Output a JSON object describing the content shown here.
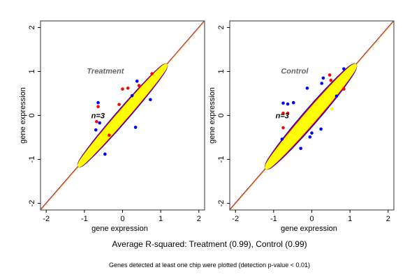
{
  "chart_data": [
    {
      "type": "scatter",
      "title": "Treatment",
      "annotation": "n=3",
      "xlabel": "gene expression",
      "ylabel": "gene expression",
      "xlim": [
        -2.15,
        2.15
      ],
      "ylim": [
        -2.15,
        2.15
      ],
      "xticks": [
        "-2",
        "-1",
        "0",
        "1",
        "2"
      ],
      "yticks": [
        "-2",
        "-1",
        "0",
        "1",
        "2"
      ],
      "grid": false,
      "reference_lines": [
        {
          "slope": 1,
          "intercept": 0,
          "colors": [
            "#0000ff",
            "#ff0000",
            "#ffa500"
          ]
        }
      ],
      "cloud": {
        "range": [
          -1.15,
          1.15
        ],
        "spread": 0.13,
        "colors": {
          "outer": "#0000ff",
          "middle": "#ff0000",
          "core": "#ffff00"
        }
      },
      "outliers": [
        {
          "x": -0.64,
          "y": 0.29,
          "c": "#0000ff"
        },
        {
          "x": -0.64,
          "y": 0.2,
          "c": "#ff0000"
        },
        {
          "x": 0.34,
          "y": -0.27,
          "c": "#0000ff"
        },
        {
          "x": -0.46,
          "y": -0.88,
          "c": "#0000ff"
        },
        {
          "x": 0.0,
          "y": 0.6,
          "c": "#ff0000"
        },
        {
          "x": 0.14,
          "y": 0.62,
          "c": "#ff0000"
        },
        {
          "x": 0.73,
          "y": 0.36,
          "c": "#0000ff"
        },
        {
          "x": 0.38,
          "y": 0.78,
          "c": "#0000ff"
        },
        {
          "x": -0.68,
          "y": -0.14,
          "c": "#ff0000"
        },
        {
          "x": -0.6,
          "y": -0.17,
          "c": "#0000ff"
        },
        {
          "x": -0.7,
          "y": -0.33,
          "c": "#0000ff"
        },
        {
          "x": 0.77,
          "y": 0.95,
          "c": "#ff0000"
        },
        {
          "x": 0.43,
          "y": 0.68,
          "c": "#ff0000"
        },
        {
          "x": -0.09,
          "y": 0.25,
          "c": "#ff0000"
        },
        {
          "x": 0.25,
          "y": 0.45,
          "c": "#0000ff"
        },
        {
          "x": -0.35,
          "y": -0.45,
          "c": "#ff0000"
        }
      ]
    },
    {
      "type": "scatter",
      "title": "Control",
      "annotation": "n=3",
      "xlabel": "gene expression",
      "ylabel": "gene expression",
      "xlim": [
        -2.15,
        2.15
      ],
      "ylim": [
        -2.15,
        2.15
      ],
      "xticks": [
        "-2",
        "-1",
        "0",
        "1",
        "2"
      ],
      "yticks": [
        "-2",
        "-1",
        "0",
        "1",
        "2"
      ],
      "grid": false,
      "reference_lines": [
        {
          "slope": 1,
          "intercept": 0,
          "colors": [
            "#0000ff",
            "#ff0000",
            "#ffa500"
          ]
        }
      ],
      "cloud": {
        "range": [
          -1.2,
          1.15
        ],
        "spread": 0.17,
        "colors": {
          "outer": "#0000ff",
          "middle": "#ff0000",
          "core": "#ffff00"
        }
      },
      "outliers": [
        {
          "x": -0.75,
          "y": 0.28,
          "c": "#0000ff"
        },
        {
          "x": -0.63,
          "y": 0.26,
          "c": "#0000ff"
        },
        {
          "x": -0.48,
          "y": 0.29,
          "c": "#0000ff"
        },
        {
          "x": -0.75,
          "y": 0.05,
          "c": "#ff0000"
        },
        {
          "x": -0.63,
          "y": 0.05,
          "c": "#ff0000"
        },
        {
          "x": -0.12,
          "y": 0.62,
          "c": "#0000ff"
        },
        {
          "x": 0.24,
          "y": -0.31,
          "c": "#0000ff"
        },
        {
          "x": 0.84,
          "y": 1.06,
          "c": "#0000ff"
        },
        {
          "x": 0.47,
          "y": 0.92,
          "c": "#ff0000"
        },
        {
          "x": -0.78,
          "y": -0.54,
          "c": "#0000ff"
        },
        {
          "x": -0.29,
          "y": -0.75,
          "c": "#0000ff"
        },
        {
          "x": -0.05,
          "y": -0.49,
          "c": "#0000ff"
        },
        {
          "x": 0.65,
          "y": 0.44,
          "c": "#0000ff"
        },
        {
          "x": 0.84,
          "y": 0.6,
          "c": "#ff0000"
        },
        {
          "x": -0.75,
          "y": -0.28,
          "c": "#ff0000"
        },
        {
          "x": 0.53,
          "y": 0.15,
          "c": "#ffff00"
        },
        {
          "x": 0.26,
          "y": 0.73,
          "c": "#0000ff"
        },
        {
          "x": 0.5,
          "y": 0.8,
          "c": "#ff0000"
        },
        {
          "x": 0.3,
          "y": 0.85,
          "c": "#0000ff"
        },
        {
          "x": 0.0,
          "y": -0.4,
          "c": "#0000ff"
        }
      ]
    }
  ],
  "caption": "Average R-squared: Treatment (0.99), Control (0.99)",
  "footnote": "Genes detected at least one chip were plotted (detection p-value < 0.01)"
}
